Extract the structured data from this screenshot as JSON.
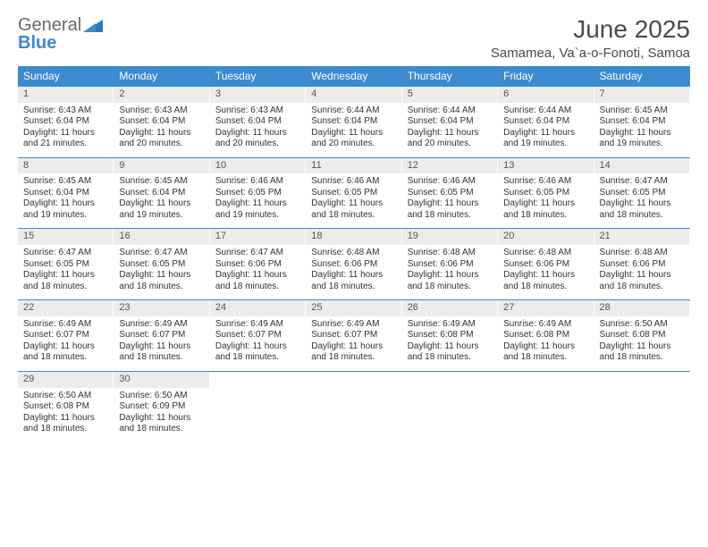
{
  "brand": {
    "part1": "General",
    "part2": "Blue"
  },
  "title": "June 2025",
  "location": "Samamea, Va`a-o-Fonoti, Samoa",
  "colors": {
    "header_bg": "#3b8bd1",
    "header_text": "#ffffff",
    "daynum_bg": "#ececec",
    "text": "#333333",
    "brand_gray": "#6b6b6b",
    "brand_blue": "#3b8bd1"
  },
  "dow": [
    "Sunday",
    "Monday",
    "Tuesday",
    "Wednesday",
    "Thursday",
    "Friday",
    "Saturday"
  ],
  "weeks": [
    [
      {
        "n": "1",
        "sr": "Sunrise: 6:43 AM",
        "ss": "Sunset: 6:04 PM",
        "d1": "Daylight: 11 hours",
        "d2": "and 21 minutes."
      },
      {
        "n": "2",
        "sr": "Sunrise: 6:43 AM",
        "ss": "Sunset: 6:04 PM",
        "d1": "Daylight: 11 hours",
        "d2": "and 20 minutes."
      },
      {
        "n": "3",
        "sr": "Sunrise: 6:43 AM",
        "ss": "Sunset: 6:04 PM",
        "d1": "Daylight: 11 hours",
        "d2": "and 20 minutes."
      },
      {
        "n": "4",
        "sr": "Sunrise: 6:44 AM",
        "ss": "Sunset: 6:04 PM",
        "d1": "Daylight: 11 hours",
        "d2": "and 20 minutes."
      },
      {
        "n": "5",
        "sr": "Sunrise: 6:44 AM",
        "ss": "Sunset: 6:04 PM",
        "d1": "Daylight: 11 hours",
        "d2": "and 20 minutes."
      },
      {
        "n": "6",
        "sr": "Sunrise: 6:44 AM",
        "ss": "Sunset: 6:04 PM",
        "d1": "Daylight: 11 hours",
        "d2": "and 19 minutes."
      },
      {
        "n": "7",
        "sr": "Sunrise: 6:45 AM",
        "ss": "Sunset: 6:04 PM",
        "d1": "Daylight: 11 hours",
        "d2": "and 19 minutes."
      }
    ],
    [
      {
        "n": "8",
        "sr": "Sunrise: 6:45 AM",
        "ss": "Sunset: 6:04 PM",
        "d1": "Daylight: 11 hours",
        "d2": "and 19 minutes."
      },
      {
        "n": "9",
        "sr": "Sunrise: 6:45 AM",
        "ss": "Sunset: 6:04 PM",
        "d1": "Daylight: 11 hours",
        "d2": "and 19 minutes."
      },
      {
        "n": "10",
        "sr": "Sunrise: 6:46 AM",
        "ss": "Sunset: 6:05 PM",
        "d1": "Daylight: 11 hours",
        "d2": "and 19 minutes."
      },
      {
        "n": "11",
        "sr": "Sunrise: 6:46 AM",
        "ss": "Sunset: 6:05 PM",
        "d1": "Daylight: 11 hours",
        "d2": "and 18 minutes."
      },
      {
        "n": "12",
        "sr": "Sunrise: 6:46 AM",
        "ss": "Sunset: 6:05 PM",
        "d1": "Daylight: 11 hours",
        "d2": "and 18 minutes."
      },
      {
        "n": "13",
        "sr": "Sunrise: 6:46 AM",
        "ss": "Sunset: 6:05 PM",
        "d1": "Daylight: 11 hours",
        "d2": "and 18 minutes."
      },
      {
        "n": "14",
        "sr": "Sunrise: 6:47 AM",
        "ss": "Sunset: 6:05 PM",
        "d1": "Daylight: 11 hours",
        "d2": "and 18 minutes."
      }
    ],
    [
      {
        "n": "15",
        "sr": "Sunrise: 6:47 AM",
        "ss": "Sunset: 6:05 PM",
        "d1": "Daylight: 11 hours",
        "d2": "and 18 minutes."
      },
      {
        "n": "16",
        "sr": "Sunrise: 6:47 AM",
        "ss": "Sunset: 6:05 PM",
        "d1": "Daylight: 11 hours",
        "d2": "and 18 minutes."
      },
      {
        "n": "17",
        "sr": "Sunrise: 6:47 AM",
        "ss": "Sunset: 6:06 PM",
        "d1": "Daylight: 11 hours",
        "d2": "and 18 minutes."
      },
      {
        "n": "18",
        "sr": "Sunrise: 6:48 AM",
        "ss": "Sunset: 6:06 PM",
        "d1": "Daylight: 11 hours",
        "d2": "and 18 minutes."
      },
      {
        "n": "19",
        "sr": "Sunrise: 6:48 AM",
        "ss": "Sunset: 6:06 PM",
        "d1": "Daylight: 11 hours",
        "d2": "and 18 minutes."
      },
      {
        "n": "20",
        "sr": "Sunrise: 6:48 AM",
        "ss": "Sunset: 6:06 PM",
        "d1": "Daylight: 11 hours",
        "d2": "and 18 minutes."
      },
      {
        "n": "21",
        "sr": "Sunrise: 6:48 AM",
        "ss": "Sunset: 6:06 PM",
        "d1": "Daylight: 11 hours",
        "d2": "and 18 minutes."
      }
    ],
    [
      {
        "n": "22",
        "sr": "Sunrise: 6:49 AM",
        "ss": "Sunset: 6:07 PM",
        "d1": "Daylight: 11 hours",
        "d2": "and 18 minutes."
      },
      {
        "n": "23",
        "sr": "Sunrise: 6:49 AM",
        "ss": "Sunset: 6:07 PM",
        "d1": "Daylight: 11 hours",
        "d2": "and 18 minutes."
      },
      {
        "n": "24",
        "sr": "Sunrise: 6:49 AM",
        "ss": "Sunset: 6:07 PM",
        "d1": "Daylight: 11 hours",
        "d2": "and 18 minutes."
      },
      {
        "n": "25",
        "sr": "Sunrise: 6:49 AM",
        "ss": "Sunset: 6:07 PM",
        "d1": "Daylight: 11 hours",
        "d2": "and 18 minutes."
      },
      {
        "n": "26",
        "sr": "Sunrise: 6:49 AM",
        "ss": "Sunset: 6:08 PM",
        "d1": "Daylight: 11 hours",
        "d2": "and 18 minutes."
      },
      {
        "n": "27",
        "sr": "Sunrise: 6:49 AM",
        "ss": "Sunset: 6:08 PM",
        "d1": "Daylight: 11 hours",
        "d2": "and 18 minutes."
      },
      {
        "n": "28",
        "sr": "Sunrise: 6:50 AM",
        "ss": "Sunset: 6:08 PM",
        "d1": "Daylight: 11 hours",
        "d2": "and 18 minutes."
      }
    ],
    [
      {
        "n": "29",
        "sr": "Sunrise: 6:50 AM",
        "ss": "Sunset: 6:08 PM",
        "d1": "Daylight: 11 hours",
        "d2": "and 18 minutes."
      },
      {
        "n": "30",
        "sr": "Sunrise: 6:50 AM",
        "ss": "Sunset: 6:09 PM",
        "d1": "Daylight: 11 hours",
        "d2": "and 18 minutes."
      },
      null,
      null,
      null,
      null,
      null
    ]
  ]
}
